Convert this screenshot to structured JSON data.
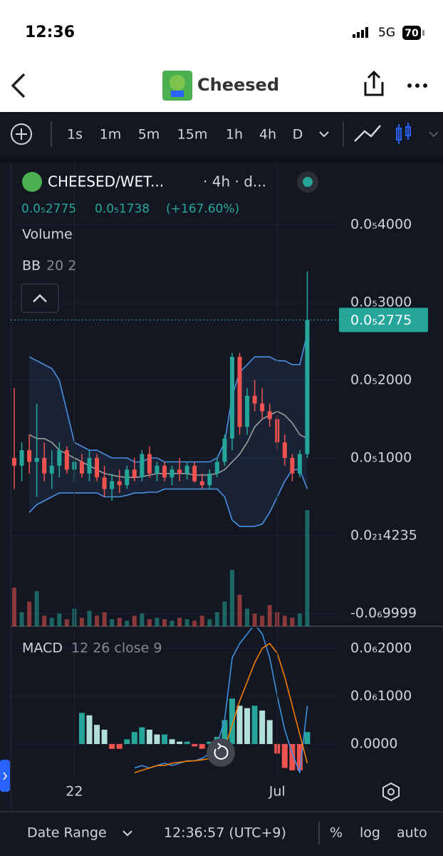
{
  "status_bar": {
    "time": "12:36",
    "network": "5G",
    "battery": "70"
  },
  "nav": {
    "title": "Cheesed"
  },
  "toolbar": {
    "intervals": [
      "1s",
      "1m",
      "5m",
      "15m",
      "1h",
      "4h",
      "D"
    ],
    "active_interval": 5
  },
  "legend": {
    "pair": "CHEESED/WET...",
    "meta": "· 4h · d...",
    "price": "0.0₅2775",
    "change": "0.0₅1738",
    "change_pct": "(+167.60%)"
  },
  "footer": {
    "date_range": "Date Range",
    "clock": "12:36:57 (UTC+9)",
    "percent": "%",
    "log": "log",
    "auto": "auto"
  },
  "chart_data": {
    "type": "candlestick",
    "categories": [
      null,
      null,
      null,
      null,
      null,
      null,
      null,
      null,
      "22",
      null,
      null,
      null,
      null,
      null,
      null,
      null,
      null,
      null,
      null,
      null,
      null,
      null,
      null,
      null,
      null,
      null,
      null,
      null,
      null,
      null,
      null,
      null,
      null,
      null,
      null,
      "Jul",
      null,
      null,
      null,
      null
    ],
    "open": [
      1e-06,
      9e-07,
      1.1e-06,
      9.5e-07,
      1e-06,
      8e-07,
      9e-07,
      1.1e-06,
      8.5e-07,
      9.5e-07,
      8e-07,
      1e-06,
      7.5e-07,
      6e-07,
      7e-07,
      6.5e-07,
      8.5e-07,
      7.5e-07,
      1.05e-06,
      8e-07,
      9e-07,
      7.5e-07,
      8.5e-07,
      8e-07,
      9e-07,
      7e-07,
      6.5e-07,
      8e-07,
      9.5e-07,
      1.25e-06,
      2.3e-06,
      1.4e-06,
      1.8e-06,
      1.7e-06,
      1.6e-06,
      1.5e-06,
      1.2e-06,
      1e-06,
      8e-07,
      1.05e-06
    ],
    "high": [
      1.9e-06,
      1.2e-06,
      1.3e-06,
      1.7e-06,
      1.2e-06,
      1.1e-06,
      1.2e-06,
      1.15e-06,
      1e-06,
      1.05e-06,
      1.1e-06,
      1.05e-06,
      9e-07,
      8e-07,
      8.5e-07,
      9e-07,
      1e-06,
      1.1e-06,
      1.15e-06,
      9.5e-07,
      9.5e-07,
      9e-07,
      1e-06,
      9.5e-07,
      9.5e-07,
      8e-07,
      8.5e-07,
      1e-06,
      1.3e-06,
      2.35e-06,
      2.35e-06,
      1.9e-06,
      2e-06,
      1.9e-06,
      1.7e-06,
      1.55e-06,
      1.3e-06,
      1.05e-06,
      1.1e-06,
      3.4e-06
    ],
    "low": [
      6e-07,
      7e-07,
      8e-07,
      5e-07,
      7e-07,
      6e-07,
      7.5e-07,
      8e-07,
      7e-07,
      7.5e-07,
      7e-07,
      7e-07,
      5e-07,
      4.5e-07,
      5.5e-07,
      6e-07,
      7e-07,
      7e-07,
      7.5e-07,
      7e-07,
      7e-07,
      6.5e-07,
      7e-07,
      7.2e-07,
      6.8e-07,
      6e-07,
      6e-07,
      7.5e-07,
      9e-07,
      1.1e-06,
      1.3e-06,
      1.3e-06,
      1.6e-06,
      1.5e-06,
      1.4e-06,
      1.1e-06,
      9e-07,
      7e-07,
      7.5e-07,
      1e-06
    ],
    "close": [
      9e-07,
      1.1e-06,
      9.5e-07,
      1e-06,
      8e-07,
      9e-07,
      1.1e-06,
      8.5e-07,
      9.5e-07,
      8e-07,
      1e-06,
      7.5e-07,
      6e-07,
      7e-07,
      6.5e-07,
      8.5e-07,
      7.5e-07,
      1.05e-06,
      8e-07,
      9e-07,
      7.5e-07,
      8.5e-07,
      8e-07,
      9e-07,
      7e-07,
      6.5e-07,
      8e-07,
      9.5e-07,
      1.25e-06,
      2.3e-06,
      1.4e-06,
      1.8e-06,
      1.7e-06,
      1.6e-06,
      1.5e-06,
      1.2e-06,
      1e-06,
      8e-07,
      1.05e-06,
      2.775e-06
    ],
    "up_color": "#26a69a",
    "down_color": "#ef5350",
    "ylim": [
      -1.165e-06,
      4.798e-06
    ],
    "yticks": [
      {
        "value": 4e-06,
        "label": "0.0₅4000"
      },
      {
        "value": 3e-06,
        "label": "0.0₅3000"
      },
      {
        "value": 2e-06,
        "label": "0.0₅2000"
      },
      {
        "value": 1e-06,
        "label": "0.0₅1000"
      },
      {
        "value": 4.235e-22,
        "label": "0.0₂₁4235"
      },
      {
        "value": -9.999e-07,
        "label": "-0.0₆9999"
      }
    ],
    "last_price": {
      "value": 2.775e-06,
      "label": "0.0₅2775"
    },
    "grid": true,
    "volume": {
      "label": "Volume",
      "values": [
        55,
        20,
        35,
        50,
        15,
        12,
        18,
        10,
        25,
        12,
        22,
        15,
        20,
        10,
        12,
        8,
        15,
        18,
        10,
        12,
        10,
        8,
        12,
        10,
        8,
        15,
        10,
        20,
        35,
        80,
        45,
        25,
        18,
        15,
        30,
        20,
        15,
        12,
        18,
        165
      ]
    },
    "bb": {
      "label": "BB",
      "params": "20 2",
      "upper_color": "#4a90e2",
      "middle_color": "#9e9e9e",
      "upper": [
        null,
        null,
        2.3e-06,
        2.25e-06,
        2.2e-06,
        2.15e-06,
        2e-06,
        1.6e-06,
        1.2e-06,
        1.15e-06,
        1.1e-06,
        1.1e-06,
        1.05e-06,
        1e-06,
        1e-06,
        1e-06,
        9.5e-07,
        9.5e-07,
        1e-06,
        1e-06,
        9.5e-07,
        9.5e-07,
        9.5e-07,
        9.5e-07,
        9.5e-07,
        9.5e-07,
        9.5e-07,
        1e-06,
        1.2e-06,
        1.8e-06,
        2.1e-06,
        2.2e-06,
        2.3e-06,
        2.3e-06,
        2.3e-06,
        2.25e-06,
        2.25e-06,
        2.2e-06,
        2.2e-06,
        2.6e-06
      ],
      "middle": [
        null,
        null,
        1.3e-06,
        1.25e-06,
        1.25e-06,
        1.2e-06,
        1.1e-06,
        1.05e-06,
        1e-06,
        9.5e-07,
        9e-07,
        8.5e-07,
        8e-07,
        7.8e-07,
        7.6e-07,
        7.5e-07,
        7.5e-07,
        7.6e-07,
        7.8e-07,
        8e-07,
        8e-07,
        8e-07,
        8e-07,
        8e-07,
        7.8e-07,
        7.8e-07,
        7.8e-07,
        8e-07,
        8.5e-07,
        9.5e-07,
        1.05e-06,
        1.2e-06,
        1.4e-06,
        1.5e-06,
        1.55e-06,
        1.6e-06,
        1.55e-06,
        1.45e-06,
        1.3e-06,
        1.25e-06
      ],
      "lower": [
        null,
        null,
        3e-07,
        4e-07,
        4.5e-07,
        5e-07,
        5.5e-07,
        5.5e-07,
        5.5e-07,
        5.5e-07,
        5.5e-07,
        5.5e-07,
        5e-07,
        5e-07,
        5e-07,
        5.2e-07,
        5.5e-07,
        5.5e-07,
        5.6e-07,
        5.6e-07,
        6e-07,
        6e-07,
        6e-07,
        6e-07,
        6e-07,
        6e-07,
        6e-07,
        6e-07,
        5e-07,
        2e-07,
        1.2e-07,
        1.2e-07,
        1.2e-07,
        1.5e-07,
        3e-07,
        5e-07,
        7e-07,
        8.5e-07,
        8.5e-07,
        6e-07
      ]
    },
    "macd": {
      "label": "MACD",
      "params": "12 26 close 9",
      "line_color": "#3d8fe0",
      "signal_color": "#f57c00",
      "ylim": [
        -7e-08,
        2.43e-07
      ],
      "yticks": [
        {
          "value": 2e-07,
          "label": "0.0₆2000"
        },
        {
          "value": 1e-07,
          "label": "0.0₆1000"
        },
        {
          "value": 0,
          "label": "0.0000"
        }
      ],
      "histogram": [
        null,
        null,
        null,
        null,
        null,
        null,
        null,
        null,
        null,
        6.5e-08,
        6e-08,
        4e-08,
        3e-08,
        -1e-08,
        -1e-08,
        1e-08,
        2.5e-08,
        3.5e-08,
        3e-08,
        2e-08,
        2e-08,
        1e-08,
        5e-09,
        5e-09,
        -5e-09,
        -1e-08,
        5e-09,
        1.5e-08,
        5e-08,
        9.5e-08,
        8e-08,
        7.5e-08,
        8e-08,
        7e-08,
        5e-08,
        -2e-08,
        -5e-08,
        -5.5e-08,
        -5.5e-08,
        2.5e-08
      ],
      "macd": [
        null,
        null,
        null,
        null,
        null,
        null,
        null,
        null,
        null,
        null,
        null,
        null,
        null,
        null,
        null,
        null,
        -5e-08,
        -4.5e-08,
        -5e-08,
        -4.5e-08,
        -4e-08,
        -4.5e-08,
        -4e-08,
        -3.5e-08,
        -3.5e-08,
        -3e-08,
        -2e-08,
        0,
        5e-08,
        1.8e-07,
        2.1e-07,
        2.3e-07,
        2.5e-07,
        2.3e-07,
        1.8e-07,
        1e-07,
        3e-08,
        -2e-08,
        -6e-08,
        8e-08
      ],
      "signal": [
        null,
        null,
        null,
        null,
        null,
        null,
        null,
        null,
        null,
        null,
        null,
        null,
        null,
        null,
        null,
        null,
        -6e-08,
        -5.5e-08,
        -5e-08,
        -4.5e-08,
        -4.5e-08,
        -4e-08,
        -3.8e-08,
        -3.6e-08,
        -3.5e-08,
        -3.3e-08,
        -3e-08,
        -2.5e-08,
        -1e-08,
        4e-08,
        9e-08,
        1.3e-07,
        1.7e-07,
        2e-07,
        2.1e-07,
        1.9e-07,
        1.4e-07,
        8e-08,
        2e-08,
        -4e-08
      ]
    }
  }
}
